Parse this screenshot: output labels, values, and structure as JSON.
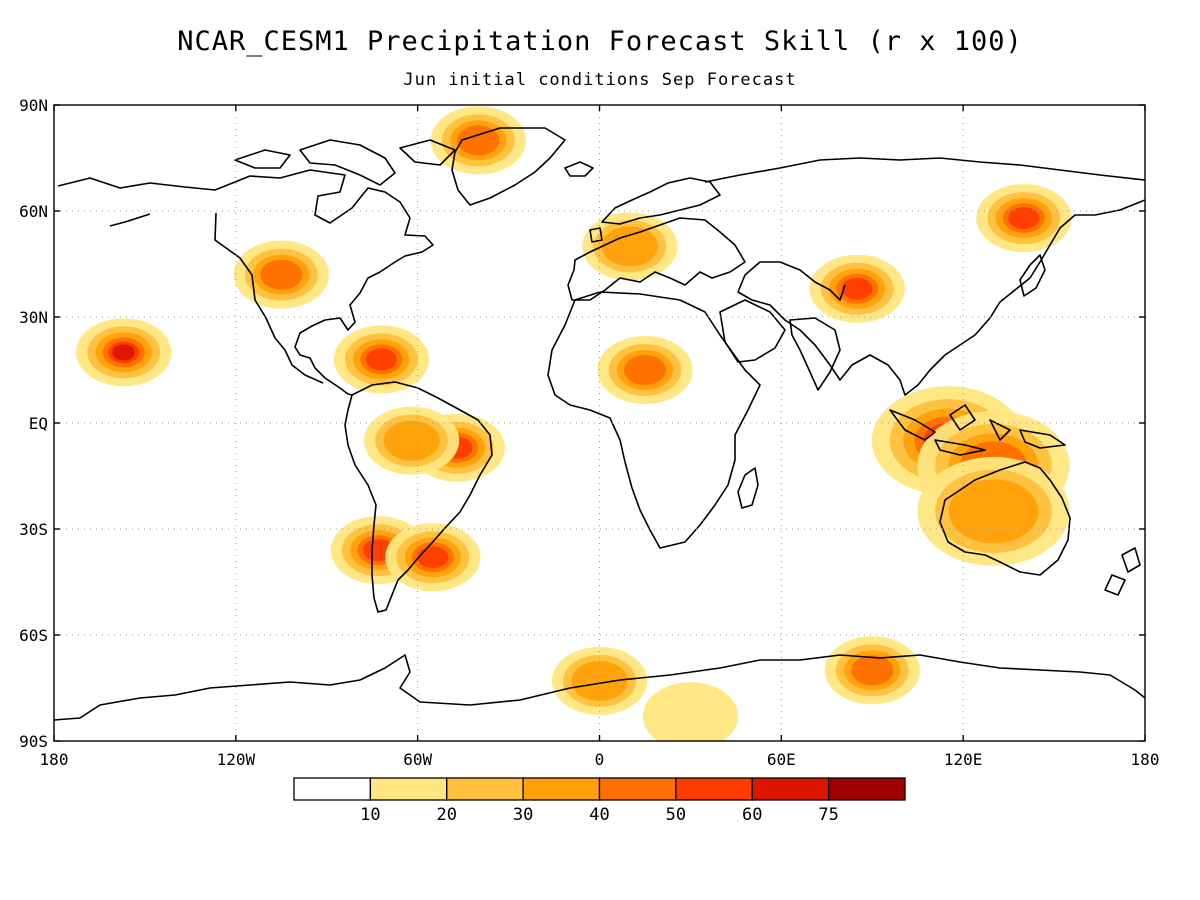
{
  "header": {
    "title": "NCAR_CESM1 Precipitation Forecast Skill (r x 100)",
    "subtitle": "Jun initial conditions  Sep Forecast"
  },
  "axes": {
    "lat_labels": [
      "90N",
      "60N",
      "30N",
      "EQ",
      "30S",
      "60S",
      "90S"
    ],
    "lon_labels": [
      "180",
      "120W",
      "60W",
      "0",
      "60E",
      "120E",
      "180"
    ]
  },
  "colorbar": {
    "levels": [
      "10",
      "20",
      "30",
      "40",
      "50",
      "60",
      "75"
    ],
    "colors": [
      "#ffffff",
      "#ffe680",
      "#ffc03c",
      "#ffa00a",
      "#ff7000",
      "#ff3c00",
      "#dd1500",
      "#a00000"
    ]
  },
  "chart_data": {
    "type": "heatmap",
    "title": "NCAR_CESM1 Precipitation Forecast Skill (r x 100)",
    "subtitle": "Jun initial conditions  Sep Forecast",
    "xlim": [
      -180,
      180
    ],
    "ylim": [
      -90,
      90
    ],
    "x_ticks": [
      -180,
      -120,
      -60,
      0,
      60,
      120,
      180
    ],
    "y_ticks": [
      90,
      60,
      30,
      0,
      -30,
      -60,
      -90
    ],
    "grid": true,
    "contour_levels": [
      10,
      20,
      30,
      40,
      50,
      60,
      75
    ],
    "skill_regions": [
      {
        "region": "Maritime Continent / Indonesia",
        "lon": 115,
        "lat": -5,
        "level": 75
      },
      {
        "region": "Northern Australia",
        "lon": 130,
        "lat": -12,
        "level": 40
      },
      {
        "region": "Australia interior",
        "lon": 130,
        "lat": -25,
        "level": 30
      },
      {
        "region": "Northeast Siberia",
        "lon": 140,
        "lat": 58,
        "level": 50
      },
      {
        "region": "Central Asia",
        "lon": 85,
        "lat": 38,
        "level": 50
      },
      {
        "region": "Arctic Greenland",
        "lon": -40,
        "lat": 80,
        "level": 40
      },
      {
        "region": "Caribbean",
        "lon": -72,
        "lat": 18,
        "level": 50
      },
      {
        "region": "Northeast Brazil",
        "lon": -47,
        "lat": -7,
        "level": 50
      },
      {
        "region": "Amazon",
        "lon": -62,
        "lat": -5,
        "level": 30
      },
      {
        "region": "Hawaii region",
        "lon": -157,
        "lat": 20,
        "level": 60
      },
      {
        "region": "Southern Chile",
        "lon": -73,
        "lat": -36,
        "level": 50
      },
      {
        "region": "Uruguay / Argentina coast",
        "lon": -55,
        "lat": -38,
        "level": 50
      },
      {
        "region": "Antarctic coast (East)",
        "lon": 90,
        "lat": -70,
        "level": 40
      },
      {
        "region": "Antarctic coast (Weddell)",
        "lon": 0,
        "lat": -73,
        "level": 30
      },
      {
        "region": "Antarctic interior",
        "lon": 30,
        "lat": -83,
        "level": 10
      },
      {
        "region": "Sahel / West Africa",
        "lon": 15,
        "lat": 15,
        "level": 40
      },
      {
        "region": "Western United States",
        "lon": -105,
        "lat": 42,
        "level": 40
      },
      {
        "region": "Europe",
        "lon": 10,
        "lat": 50,
        "level": 30
      }
    ]
  }
}
